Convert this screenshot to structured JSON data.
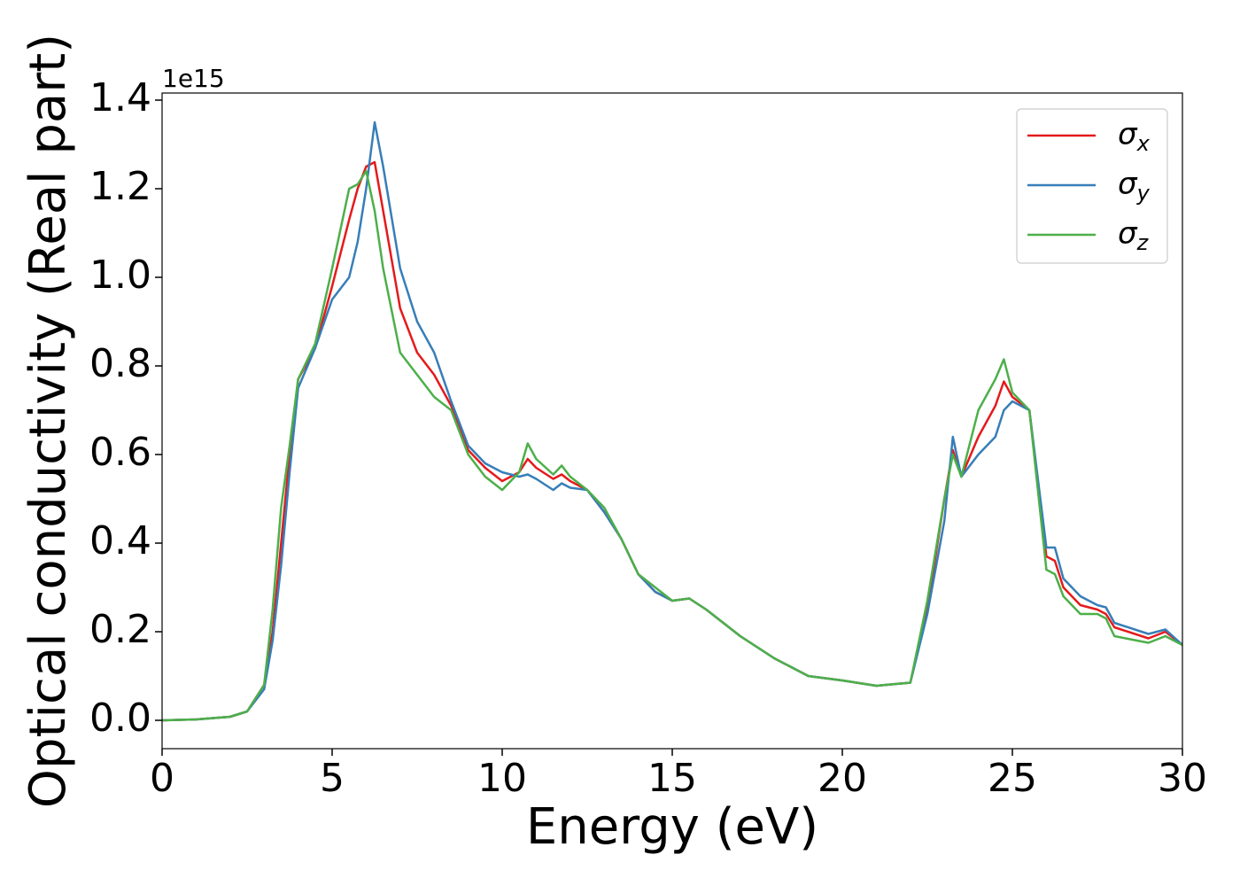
{
  "chart_data": {
    "type": "line",
    "xlabel": "Energy (eV)",
    "ylabel": "Optical conductivity (Real part)",
    "y_offset_label": "1e15",
    "x": [
      0,
      1,
      2,
      2.5,
      3,
      3.25,
      3.5,
      3.75,
      4,
      4.5,
      5,
      5.5,
      5.75,
      6,
      6.25,
      6.5,
      7,
      7.5,
      8,
      8.5,
      9,
      9.5,
      10,
      10.5,
      10.75,
      11,
      11.5,
      11.75,
      12,
      12.5,
      13,
      13.5,
      14,
      14.5,
      15,
      15.5,
      16,
      17,
      18,
      19,
      20,
      21,
      22,
      22.5,
      23,
      23.25,
      23.5,
      24,
      24.5,
      24.75,
      25,
      25.5,
      26,
      26.25,
      26.5,
      27,
      27.5,
      27.75,
      28,
      29,
      29.5,
      30
    ],
    "series": [
      {
        "name": "σx",
        "color": "#e41a1c",
        "values": [
          0,
          0.002,
          0.008,
          0.02,
          0.08,
          0.2,
          0.4,
          0.6,
          0.77,
          0.84,
          0.98,
          1.13,
          1.2,
          1.25,
          1.26,
          1.15,
          0.93,
          0.83,
          0.78,
          0.71,
          0.61,
          0.57,
          0.54,
          0.56,
          0.59,
          0.57,
          0.545,
          0.555,
          0.54,
          0.52,
          0.47,
          0.41,
          0.33,
          0.29,
          0.27,
          0.275,
          0.25,
          0.19,
          0.14,
          0.1,
          0.09,
          0.078,
          0.085,
          0.25,
          0.5,
          0.61,
          0.55,
          0.64,
          0.71,
          0.765,
          0.73,
          0.7,
          0.37,
          0.36,
          0.3,
          0.26,
          0.25,
          0.24,
          0.21,
          0.185,
          0.2,
          0.17
        ]
      },
      {
        "name": "σy",
        "color": "#377eb8",
        "values": [
          0,
          0.002,
          0.008,
          0.02,
          0.07,
          0.18,
          0.35,
          0.56,
          0.75,
          0.84,
          0.95,
          1.0,
          1.08,
          1.2,
          1.35,
          1.25,
          1.02,
          0.9,
          0.83,
          0.72,
          0.62,
          0.58,
          0.56,
          0.55,
          0.555,
          0.545,
          0.52,
          0.535,
          0.525,
          0.52,
          0.47,
          0.41,
          0.33,
          0.29,
          0.27,
          0.275,
          0.25,
          0.19,
          0.14,
          0.1,
          0.09,
          0.078,
          0.085,
          0.24,
          0.45,
          0.64,
          0.55,
          0.6,
          0.64,
          0.7,
          0.72,
          0.7,
          0.39,
          0.39,
          0.32,
          0.28,
          0.26,
          0.255,
          0.22,
          0.195,
          0.205,
          0.17
        ]
      },
      {
        "name": "σz",
        "color": "#4daf4a",
        "values": [
          0,
          0.002,
          0.008,
          0.02,
          0.08,
          0.25,
          0.48,
          0.62,
          0.77,
          0.85,
          1.02,
          1.2,
          1.21,
          1.24,
          1.15,
          1.02,
          0.83,
          0.78,
          0.73,
          0.7,
          0.6,
          0.55,
          0.52,
          0.56,
          0.625,
          0.59,
          0.555,
          0.575,
          0.55,
          0.52,
          0.48,
          0.41,
          0.33,
          0.3,
          0.27,
          0.275,
          0.25,
          0.19,
          0.14,
          0.1,
          0.09,
          0.078,
          0.085,
          0.27,
          0.5,
          0.6,
          0.55,
          0.7,
          0.77,
          0.815,
          0.74,
          0.7,
          0.34,
          0.33,
          0.28,
          0.24,
          0.24,
          0.23,
          0.19,
          0.175,
          0.19,
          0.17
        ]
      }
    ],
    "xlim": [
      0,
      30
    ],
    "xticks": [
      0,
      5,
      10,
      15,
      20,
      25,
      30
    ],
    "ylim": [
      -0.064,
      1.416
    ],
    "yticks": [
      {
        "value": 0,
        "label": "0.0"
      },
      0.2,
      0.4,
      0.6,
      0.8,
      {
        "value": 1,
        "label": "1.0"
      },
      1.2,
      1.4
    ],
    "legend": "upper right",
    "grid": false
  }
}
